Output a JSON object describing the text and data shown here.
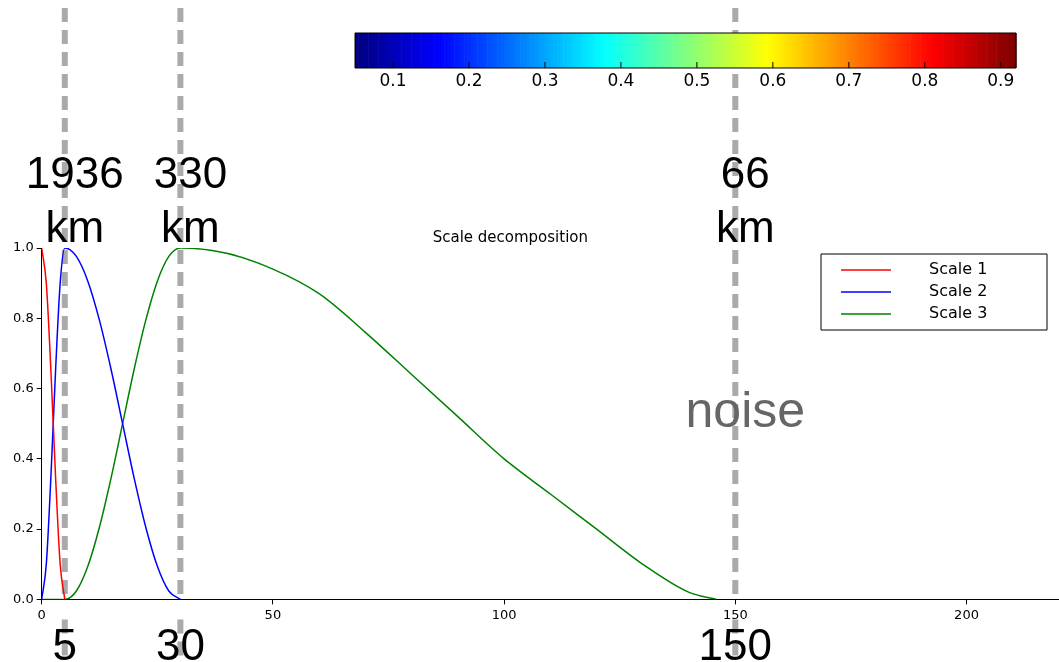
{
  "chart_data": {
    "type": "line",
    "title": "Scale decomposition",
    "xlim": [
      0,
      220
    ],
    "xticks": [
      0,
      50,
      100,
      150,
      200
    ],
    "ylim": [
      0,
      1
    ],
    "yticks": [
      {
        "value": 0,
        "label": "0.0"
      },
      {
        "value": 0.2,
        "label": "0.2"
      },
      {
        "value": 0.4,
        "label": "0.4"
      },
      {
        "value": 0.6,
        "label": "0.6"
      },
      {
        "value": 0.8,
        "label": "0.8"
      },
      {
        "value": 1,
        "label": "1.0"
      }
    ],
    "grid": false,
    "legend": "top right",
    "line_style": "solid",
    "marker": "none",
    "clim": [
      0.05,
      0.92
    ],
    "cticks": [
      0.1,
      0.2,
      0.3,
      0.4,
      0.5,
      0.6,
      0.7,
      0.8,
      0.9
    ],
    "series": [
      {
        "name": "Scale 1",
        "color": "#ff0000",
        "x": [
          0,
          1,
          2,
          3,
          4,
          5
        ],
        "values": [
          1,
          0.9,
          0.65,
          0.35,
          0.1,
          0
        ]
      },
      {
        "name": "Scale 2",
        "color": "#0000ff",
        "x": [
          0,
          1,
          2,
          3,
          4,
          5,
          7.5,
          10,
          12.5,
          15,
          17.5,
          20,
          22.5,
          25,
          27.5,
          30
        ],
        "values": [
          0,
          0.1,
          0.35,
          0.65,
          0.9,
          1,
          0.976,
          0.905,
          0.794,
          0.655,
          0.5,
          0.345,
          0.206,
          0.095,
          0.024,
          0
        ]
      },
      {
        "name": "Scale 3",
        "color": "#008000",
        "x": [
          0,
          5,
          7.5,
          10,
          12.5,
          15,
          17.5,
          20,
          22.5,
          25,
          27.5,
          30,
          40,
          50,
          60,
          70,
          80,
          90,
          100,
          110,
          120,
          130,
          140,
          146
        ],
        "values": [
          0,
          0,
          0.024,
          0.095,
          0.206,
          0.345,
          0.5,
          0.655,
          0.794,
          0.905,
          0.976,
          1,
          0.985,
          0.94,
          0.87,
          0.76,
          0.64,
          0.52,
          0.4,
          0.3,
          0.2,
          0.1,
          0.02,
          0
        ]
      }
    ],
    "ref_lines": [
      {
        "axis": "x",
        "value": 5,
        "label": "5",
        "color": "#aaaaaa",
        "line_style": "dashed"
      },
      {
        "axis": "x",
        "value": 30,
        "label": "30",
        "color": "#aaaaaa",
        "line_style": "dashed"
      },
      {
        "axis": "x",
        "value": 150,
        "label": "150",
        "color": "#aaaaaa",
        "line_style": "dashed"
      }
    ],
    "annotations": [
      {
        "text": "1936 km",
        "x": 5
      },
      {
        "text": "330 km",
        "x": 30
      },
      {
        "text": "66 km",
        "x": 150
      },
      {
        "text": "noise",
        "x": 150,
        "y": 0.5
      }
    ]
  }
}
